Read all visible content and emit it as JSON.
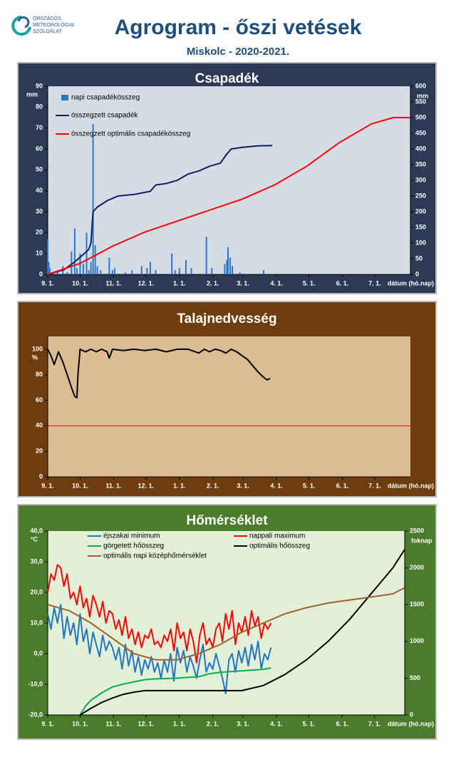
{
  "header": {
    "logo": [
      "ORSZÁGOS",
      "METEOROLÓGIAI",
      "SZOLGÁLAT"
    ],
    "title": "Agrogram - őszi vetések",
    "subtitle": "Miskolc - 2020-2021."
  },
  "chart_data": [
    {
      "type": "combo",
      "title": "Csapadék",
      "unit": "mm",
      "y2unit": "mm",
      "xlabel": "dátum (hó.nap)",
      "xlim": [
        0,
        336
      ],
      "xticks": [
        {
          "value": 0,
          "label": "9. 1."
        },
        {
          "value": 30,
          "label": "10. 1."
        },
        {
          "value": 61,
          "label": "11. 1."
        },
        {
          "value": 91,
          "label": "12. 1."
        },
        {
          "value": 122,
          "label": "1. 1."
        },
        {
          "value": 153,
          "label": "2. 1."
        },
        {
          "value": 181,
          "label": "3. 1."
        },
        {
          "value": 212,
          "label": "4. 1."
        },
        {
          "value": 242,
          "label": "5. 1."
        },
        {
          "value": 273,
          "label": "6. 1."
        },
        {
          "value": 303,
          "label": "7. 1."
        }
      ],
      "ylim": [
        0,
        90
      ],
      "yticks": [
        0,
        10,
        20,
        30,
        40,
        50,
        60,
        70,
        80,
        90
      ],
      "y2lim": [
        0,
        600
      ],
      "y2ticks": [
        0,
        50,
        100,
        150,
        200,
        250,
        300,
        350,
        400,
        450,
        500,
        550,
        600
      ],
      "series": [
        {
          "name": "napi csapadékösszeg",
          "type": "bar",
          "color": "#2e75c8",
          "x": [
            0,
            1,
            2,
            5,
            9,
            14,
            18,
            22,
            25,
            27,
            30,
            33,
            36,
            38,
            40,
            42,
            44,
            46,
            49,
            57,
            60,
            62,
            72,
            78,
            87,
            92,
            95,
            100,
            115,
            118,
            122,
            128,
            133,
            147,
            152,
            164,
            166,
            167,
            169,
            171,
            178,
            200
          ],
          "values": [
            17,
            6,
            3,
            1,
            2,
            4,
            1,
            11,
            22,
            3,
            10,
            5,
            20,
            2,
            6,
            72,
            14,
            4,
            2,
            8,
            2,
            3,
            1,
            2,
            4,
            3,
            6,
            2,
            10,
            2,
            3,
            7,
            3,
            18,
            3,
            5,
            7,
            13,
            8,
            4,
            1,
            2
          ]
        },
        {
          "name": "összegzett csapadék",
          "type": "line",
          "axis": "y2",
          "color": "#0d1f5c",
          "x": [
            0,
            5,
            15,
            25,
            35,
            38,
            40,
            42,
            46,
            55,
            65,
            80,
            95,
            100,
            110,
            120,
            130,
            140,
            150,
            160,
            165,
            170,
            180,
            195,
            208
          ],
          "values": [
            0,
            5,
            15,
            40,
            70,
            80,
            100,
            200,
            215,
            235,
            250,
            255,
            265,
            285,
            290,
            300,
            320,
            330,
            345,
            355,
            380,
            400,
            405,
            410,
            411
          ]
        },
        {
          "name": "összegzett optimális  csapadékösszeg",
          "type": "line",
          "axis": "y2",
          "color": "#ff0000",
          "x": [
            0,
            30,
            60,
            90,
            120,
            150,
            180,
            210,
            240,
            270,
            300,
            320,
            336
          ],
          "values": [
            0,
            35,
            90,
            135,
            170,
            205,
            240,
            285,
            345,
            420,
            480,
            500,
            500
          ]
        }
      ]
    },
    {
      "type": "line",
      "title": "Talajnedvesség",
      "unit": "%",
      "xlabel": "dátum (hó.nap)",
      "xlim": [
        0,
        336
      ],
      "xticks": [
        {
          "value": 0,
          "label": "9. 1."
        },
        {
          "value": 30,
          "label": "10. 1."
        },
        {
          "value": 61,
          "label": "11. 1."
        },
        {
          "value": 91,
          "label": "12. 1."
        },
        {
          "value": 122,
          "label": "1. 1."
        },
        {
          "value": 153,
          "label": "2. 1."
        },
        {
          "value": 181,
          "label": "3. 1."
        },
        {
          "value": 212,
          "label": "4. 1."
        },
        {
          "value": 242,
          "label": "5. 1."
        },
        {
          "value": 273,
          "label": "6. 1."
        },
        {
          "value": 303,
          "label": "7. 1."
        }
      ],
      "ylim": [
        0,
        110
      ],
      "yticks": [
        0,
        20,
        40,
        60,
        80,
        100
      ],
      "hlines": [
        {
          "value": 40,
          "color": "#e00000"
        }
      ],
      "series": [
        {
          "type": "line",
          "color": "#000000",
          "x": [
            0,
            3,
            6,
            10,
            14,
            18,
            22,
            25,
            27,
            28,
            30,
            35,
            40,
            45,
            50,
            55,
            57,
            60,
            70,
            80,
            90,
            100,
            110,
            120,
            130,
            140,
            145,
            150,
            155,
            160,
            165,
            170,
            175,
            180,
            185,
            190,
            195,
            200,
            203,
            206
          ],
          "values": [
            100,
            95,
            88,
            98,
            90,
            80,
            70,
            63,
            62,
            80,
            100,
            98,
            100,
            98,
            100,
            98,
            93,
            100,
            99,
            100,
            99,
            100,
            98,
            100,
            100,
            97,
            100,
            98,
            100,
            99,
            97,
            100,
            98,
            95,
            92,
            87,
            82,
            78,
            76,
            77
          ]
        }
      ]
    },
    {
      "type": "line",
      "title": "Hőmérséklet",
      "unit": "°C",
      "y2unit": "foknap",
      "xlabel": "dátum (hó.nap)",
      "xlim": [
        0,
        331
      ],
      "xticks": [
        {
          "value": 0,
          "label": "9. 1."
        },
        {
          "value": 30,
          "label": "10. 1."
        },
        {
          "value": 61,
          "label": "11. 1."
        },
        {
          "value": 91,
          "label": "12. 1."
        },
        {
          "value": 122,
          "label": "1. 1."
        },
        {
          "value": 153,
          "label": "2. 1."
        },
        {
          "value": 181,
          "label": "3. 1."
        },
        {
          "value": 212,
          "label": "4. 1."
        },
        {
          "value": 242,
          "label": "5. 1."
        },
        {
          "value": 273,
          "label": "6. 1."
        },
        {
          "value": 303,
          "label": "7. 1."
        }
      ],
      "ylim": [
        -20,
        40
      ],
      "yticks": [
        {
          "value": -20,
          "label": "-20,0"
        },
        {
          "value": -10,
          "label": "-10,0"
        },
        {
          "value": 0,
          "label": "0,0"
        },
        {
          "value": 10,
          "label": "10,0"
        },
        {
          "value": 20,
          "label": "20,0"
        },
        {
          "value": 30,
          "label": "30,0"
        },
        {
          "value": 40,
          "label": "40,0"
        }
      ],
      "y2lim": [
        0,
        2500
      ],
      "y2ticks": [
        0,
        500,
        1000,
        1500,
        2000,
        2500
      ],
      "series": [
        {
          "name": "éjszakai minimum",
          "type": "line",
          "color": "#1f77c4",
          "x": [
            0,
            3,
            6,
            9,
            12,
            15,
            18,
            21,
            24,
            27,
            30,
            33,
            36,
            39,
            42,
            45,
            48,
            51,
            54,
            57,
            60,
            63,
            66,
            69,
            72,
            75,
            78,
            81,
            84,
            87,
            90,
            93,
            96,
            99,
            102,
            105,
            108,
            111,
            114,
            117,
            120,
            123,
            126,
            129,
            132,
            135,
            138,
            141,
            144,
            147,
            150,
            153,
            156,
            159,
            162,
            165,
            168,
            171,
            174,
            177,
            180,
            183,
            186,
            189,
            192,
            195,
            198,
            201,
            204,
            207
          ],
          "values": [
            13,
            8,
            15,
            10,
            16,
            5,
            12,
            6,
            10,
            3,
            13,
            4,
            8,
            0,
            7,
            3,
            -1,
            6,
            1,
            4,
            2,
            -2,
            2,
            -5,
            3,
            -4,
            1,
            -6,
            -1,
            -7,
            -2,
            -5,
            -1,
            -6,
            -3,
            -8,
            -2,
            -6,
            0,
            -9,
            2,
            -3,
            1,
            -6,
            -1,
            -4,
            -8,
            -2,
            3,
            -6,
            -3,
            -5,
            0,
            -4,
            -8,
            -13,
            -2,
            0,
            -6,
            1,
            -3,
            2,
            -4,
            3,
            -2,
            4,
            -5,
            0,
            -2,
            2
          ]
        },
        {
          "name": "nappali maximum",
          "type": "line",
          "color": "#ff0000",
          "x": [
            0,
            3,
            6,
            9,
            12,
            15,
            18,
            21,
            24,
            27,
            30,
            33,
            36,
            39,
            42,
            45,
            48,
            51,
            54,
            57,
            60,
            63,
            66,
            69,
            72,
            75,
            78,
            81,
            84,
            87,
            90,
            93,
            96,
            99,
            102,
            105,
            108,
            111,
            114,
            117,
            120,
            123,
            126,
            129,
            132,
            135,
            138,
            141,
            144,
            147,
            150,
            153,
            156,
            159,
            162,
            165,
            168,
            171,
            174,
            177,
            180,
            183,
            186,
            189,
            192,
            195,
            198,
            201,
            204,
            207
          ],
          "values": [
            20,
            26,
            24,
            29,
            28,
            22,
            26,
            18,
            20,
            16,
            22,
            15,
            18,
            12,
            19,
            16,
            12,
            17,
            10,
            14,
            13,
            8,
            11,
            6,
            12,
            5,
            8,
            3,
            7,
            2,
            6,
            5,
            8,
            3,
            4,
            2,
            6,
            4,
            8,
            1,
            10,
            5,
            7,
            1,
            8,
            4,
            -3,
            6,
            10,
            3,
            5,
            2,
            8,
            10,
            4,
            13,
            8,
            14,
            3,
            10,
            7,
            12,
            6,
            14,
            9,
            12,
            5,
            10,
            8,
            10
          ]
        },
        {
          "name": "görgetett hőösszeg",
          "type": "line",
          "axis": "y2",
          "color": "#00b050",
          "x": [
            30,
            35,
            40,
            50,
            60,
            70,
            80,
            90,
            100,
            120,
            140,
            150,
            160,
            180,
            200,
            207
          ],
          "values": [
            0,
            120,
            200,
            300,
            380,
            420,
            450,
            480,
            490,
            500,
            520,
            560,
            580,
            600,
            620,
            640
          ]
        },
        {
          "name": "optimális hőösszeg",
          "type": "line",
          "axis": "y2",
          "color": "#000000",
          "x": [
            30,
            40,
            50,
            60,
            70,
            80,
            90,
            120,
            150,
            180,
            200,
            220,
            240,
            260,
            280,
            300,
            320,
            331
          ],
          "values": [
            0,
            90,
            170,
            230,
            280,
            310,
            330,
            330,
            330,
            330,
            400,
            550,
            750,
            1000,
            1300,
            1650,
            2000,
            2250
          ]
        },
        {
          "name": "optimális napi középhőmérséklet",
          "type": "line",
          "color": "#a0622d",
          "x": [
            0,
            20,
            40,
            60,
            80,
            100,
            120,
            140,
            160,
            180,
            200,
            220,
            240,
            260,
            280,
            300,
            320,
            331
          ],
          "values": [
            16,
            14,
            10,
            5,
            0,
            -2,
            -2,
            0,
            3,
            7,
            10,
            13,
            15,
            16.5,
            17.5,
            18.5,
            19.5,
            21.5
          ]
        }
      ]
    }
  ]
}
